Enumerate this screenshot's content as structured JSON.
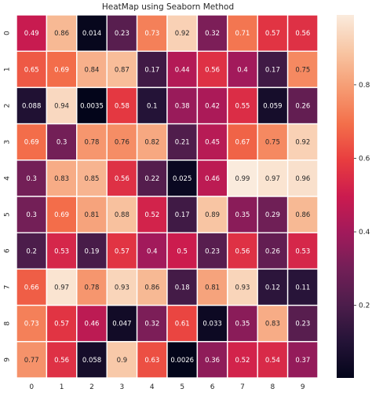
{
  "chart_data": {
    "type": "heatmap",
    "title": "HeatMap using Seaborn Method",
    "x_categories": [
      "0",
      "1",
      "2",
      "3",
      "4",
      "5",
      "6",
      "7",
      "8",
      "9"
    ],
    "y_categories": [
      "0",
      "1",
      "2",
      "3",
      "4",
      "5",
      "6",
      "7",
      "8",
      "9"
    ],
    "values": [
      [
        0.49,
        0.86,
        0.014,
        0.23,
        0.73,
        0.92,
        0.32,
        0.71,
        0.57,
        0.56
      ],
      [
        0.65,
        0.69,
        0.84,
        0.87,
        0.17,
        0.44,
        0.56,
        0.4,
        0.17,
        0.75
      ],
      [
        0.088,
        0.94,
        0.0035,
        0.58,
        0.1,
        0.38,
        0.42,
        0.55,
        0.059,
        0.26
      ],
      [
        0.69,
        0.3,
        0.78,
        0.76,
        0.82,
        0.21,
        0.45,
        0.67,
        0.75,
        0.92
      ],
      [
        0.3,
        0.83,
        0.85,
        0.56,
        0.22,
        0.025,
        0.46,
        0.99,
        0.97,
        0.96
      ],
      [
        0.3,
        0.69,
        0.81,
        0.88,
        0.52,
        0.17,
        0.89,
        0.35,
        0.29,
        0.86
      ],
      [
        0.2,
        0.53,
        0.19,
        0.57,
        0.4,
        0.5,
        0.23,
        0.56,
        0.26,
        0.53
      ],
      [
        0.66,
        0.97,
        0.78,
        0.93,
        0.86,
        0.18,
        0.81,
        0.93,
        0.12,
        0.11
      ],
      [
        0.73,
        0.57,
        0.46,
        0.047,
        0.32,
        0.61,
        0.033,
        0.35,
        0.83,
        0.23
      ],
      [
        0.77,
        0.56,
        0.058,
        0.9,
        0.63,
        0.0026,
        0.36,
        0.52,
        0.54,
        0.37
      ]
    ],
    "labels": [
      [
        "0.49",
        "0.86",
        "0.014",
        "0.23",
        "0.73",
        "0.92",
        "0.32",
        "0.71",
        "0.57",
        "0.56"
      ],
      [
        "0.65",
        "0.69",
        "0.84",
        "0.87",
        "0.17",
        "0.44",
        "0.56",
        "0.4",
        "0.17",
        "0.75"
      ],
      [
        "0.088",
        "0.94",
        "0.0035",
        "0.58",
        "0.1",
        "0.38",
        "0.42",
        "0.55",
        "0.059",
        "0.26"
      ],
      [
        "0.69",
        "0.3",
        "0.78",
        "0.76",
        "0.82",
        "0.21",
        "0.45",
        "0.67",
        "0.75",
        "0.92"
      ],
      [
        "0.3",
        "0.83",
        "0.85",
        "0.56",
        "0.22",
        "0.025",
        "0.46",
        "0.99",
        "0.97",
        "0.96"
      ],
      [
        "0.3",
        "0.69",
        "0.81",
        "0.88",
        "0.52",
        "0.17",
        "0.89",
        "0.35",
        "0.29",
        "0.86"
      ],
      [
        "0.2",
        "0.53",
        "0.19",
        "0.57",
        "0.4",
        "0.5",
        "0.23",
        "0.56",
        "0.26",
        "0.53"
      ],
      [
        "0.66",
        "0.97",
        "0.78",
        "0.93",
        "0.86",
        "0.18",
        "0.81",
        "0.93",
        "0.12",
        "0.11"
      ],
      [
        "0.73",
        "0.57",
        "0.46",
        "0.047",
        "0.32",
        "0.61",
        "0.033",
        "0.35",
        "0.83",
        "0.23"
      ],
      [
        "0.77",
        "0.56",
        "0.058",
        "0.9",
        "0.63",
        "0.0026",
        "0.36",
        "0.52",
        "0.54",
        "0.37"
      ]
    ],
    "vmin": 0.0026,
    "vmax": 0.99,
    "colormap": "rocket",
    "cell_separator_color": "#ffffff",
    "colorbar": {
      "ticks": [
        0.2,
        0.4,
        0.6,
        0.8
      ],
      "tick_labels": [
        "0.2",
        "0.4",
        "0.6",
        "0.8"
      ]
    }
  }
}
